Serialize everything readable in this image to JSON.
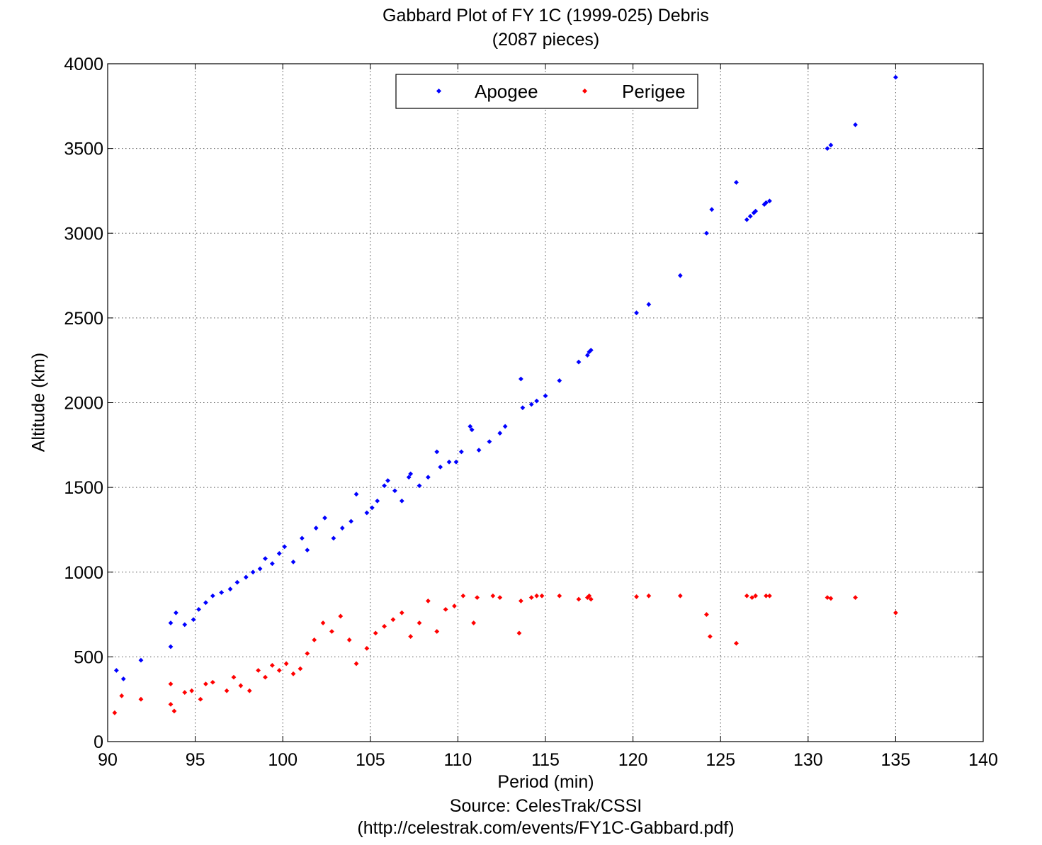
{
  "chart_data": {
    "type": "scatter",
    "title": "Gabbard Plot of FY 1C (1999-025) Debris",
    "subtitle": "(2087 pieces)",
    "xlabel": "Period (min)",
    "ylabel": "Altitude (km)",
    "caption": [
      "Source: CelesTrak/CSSI",
      "(http://celestrak.com/events/FY1C-Gabbard.pdf)"
    ],
    "xlim": [
      90,
      140
    ],
    "ylim": [
      0,
      4000
    ],
    "xticks": [
      "90",
      "95",
      "100",
      "105",
      "110",
      "115",
      "120",
      "125",
      "130",
      "135",
      "140"
    ],
    "yticks": [
      "0",
      "500",
      "1000",
      "1500",
      "2000",
      "2500",
      "3000",
      "3500",
      "4000"
    ],
    "grid": true,
    "legend_position": "top-center",
    "series": [
      {
        "name": "Apogee",
        "color": "#0000ff",
        "points": [
          [
            90.5,
            420
          ],
          [
            90.9,
            370
          ],
          [
            91.9,
            480
          ],
          [
            93.6,
            560
          ],
          [
            93.6,
            700
          ],
          [
            93.9,
            760
          ],
          [
            94.4,
            690
          ],
          [
            94.9,
            720
          ],
          [
            95.2,
            780
          ],
          [
            95.6,
            820
          ],
          [
            96.0,
            860
          ],
          [
            96.5,
            880
          ],
          [
            97.0,
            900
          ],
          [
            97.4,
            940
          ],
          [
            97.9,
            970
          ],
          [
            98.3,
            1000
          ],
          [
            98.7,
            1020
          ],
          [
            99.0,
            1080
          ],
          [
            99.4,
            1050
          ],
          [
            99.8,
            1110
          ],
          [
            100.1,
            1150
          ],
          [
            100.6,
            1060
          ],
          [
            101.1,
            1200
          ],
          [
            101.4,
            1130
          ],
          [
            101.9,
            1260
          ],
          [
            102.4,
            1320
          ],
          [
            102.9,
            1200
          ],
          [
            103.4,
            1260
          ],
          [
            103.9,
            1300
          ],
          [
            104.2,
            1460
          ],
          [
            104.8,
            1350
          ],
          [
            105.1,
            1380
          ],
          [
            105.4,
            1420
          ],
          [
            105.8,
            1510
          ],
          [
            106.0,
            1540
          ],
          [
            106.4,
            1480
          ],
          [
            106.8,
            1420
          ],
          [
            107.2,
            1560
          ],
          [
            107.3,
            1580
          ],
          [
            107.8,
            1510
          ],
          [
            108.3,
            1560
          ],
          [
            108.8,
            1710
          ],
          [
            109.0,
            1620
          ],
          [
            109.5,
            1650
          ],
          [
            109.9,
            1650
          ],
          [
            110.2,
            1710
          ],
          [
            110.7,
            1860
          ],
          [
            110.8,
            1840
          ],
          [
            111.2,
            1720
          ],
          [
            111.8,
            1770
          ],
          [
            112.4,
            1820
          ],
          [
            112.7,
            1860
          ],
          [
            113.6,
            2140
          ],
          [
            113.7,
            1970
          ],
          [
            114.2,
            1990
          ],
          [
            114.5,
            2010
          ],
          [
            115.0,
            2040
          ],
          [
            115.8,
            2130
          ],
          [
            116.9,
            2240
          ],
          [
            117.4,
            2280
          ],
          [
            117.5,
            2300
          ],
          [
            117.6,
            2310
          ],
          [
            120.2,
            2530
          ],
          [
            120.9,
            2580
          ],
          [
            122.7,
            2750
          ],
          [
            124.2,
            3000
          ],
          [
            124.5,
            3140
          ],
          [
            125.9,
            3300
          ],
          [
            126.5,
            3080
          ],
          [
            126.7,
            3100
          ],
          [
            126.9,
            3120
          ],
          [
            127.0,
            3130
          ],
          [
            127.5,
            3170
          ],
          [
            127.6,
            3180
          ],
          [
            127.8,
            3190
          ],
          [
            131.1,
            3500
          ],
          [
            131.3,
            3520
          ],
          [
            132.7,
            3640
          ],
          [
            135.0,
            3920
          ]
        ]
      },
      {
        "name": "Perigee",
        "color": "#ff0000",
        "points": [
          [
            90.4,
            170
          ],
          [
            90.8,
            270
          ],
          [
            91.9,
            250
          ],
          [
            93.6,
            340
          ],
          [
            93.6,
            220
          ],
          [
            93.8,
            180
          ],
          [
            94.4,
            290
          ],
          [
            94.8,
            300
          ],
          [
            95.3,
            250
          ],
          [
            95.6,
            340
          ],
          [
            96.0,
            350
          ],
          [
            96.8,
            300
          ],
          [
            97.2,
            380
          ],
          [
            97.6,
            330
          ],
          [
            98.1,
            300
          ],
          [
            98.6,
            420
          ],
          [
            99.0,
            380
          ],
          [
            99.4,
            450
          ],
          [
            99.8,
            420
          ],
          [
            100.2,
            460
          ],
          [
            100.6,
            400
          ],
          [
            101.0,
            430
          ],
          [
            101.4,
            520
          ],
          [
            101.8,
            600
          ],
          [
            102.3,
            700
          ],
          [
            102.8,
            650
          ],
          [
            103.3,
            740
          ],
          [
            103.8,
            600
          ],
          [
            104.2,
            460
          ],
          [
            104.8,
            550
          ],
          [
            105.3,
            640
          ],
          [
            105.8,
            680
          ],
          [
            106.3,
            720
          ],
          [
            106.8,
            760
          ],
          [
            107.3,
            620
          ],
          [
            107.8,
            700
          ],
          [
            108.3,
            830
          ],
          [
            108.8,
            650
          ],
          [
            109.3,
            780
          ],
          [
            109.8,
            800
          ],
          [
            110.3,
            860
          ],
          [
            110.9,
            700
          ],
          [
            111.1,
            850
          ],
          [
            112.0,
            860
          ],
          [
            112.4,
            850
          ],
          [
            113.5,
            640
          ],
          [
            113.6,
            830
          ],
          [
            114.2,
            850
          ],
          [
            114.5,
            860
          ],
          [
            114.8,
            860
          ],
          [
            115.8,
            860
          ],
          [
            116.9,
            840
          ],
          [
            117.4,
            850
          ],
          [
            117.5,
            860
          ],
          [
            117.6,
            840
          ],
          [
            120.2,
            855
          ],
          [
            120.9,
            860
          ],
          [
            122.7,
            860
          ],
          [
            124.2,
            750
          ],
          [
            124.4,
            620
          ],
          [
            125.9,
            580
          ],
          [
            126.5,
            860
          ],
          [
            126.8,
            850
          ],
          [
            127.0,
            860
          ],
          [
            127.6,
            860
          ],
          [
            127.8,
            860
          ],
          [
            131.1,
            850
          ],
          [
            131.3,
            845
          ],
          [
            132.7,
            850
          ],
          [
            135.0,
            760
          ]
        ]
      }
    ]
  }
}
